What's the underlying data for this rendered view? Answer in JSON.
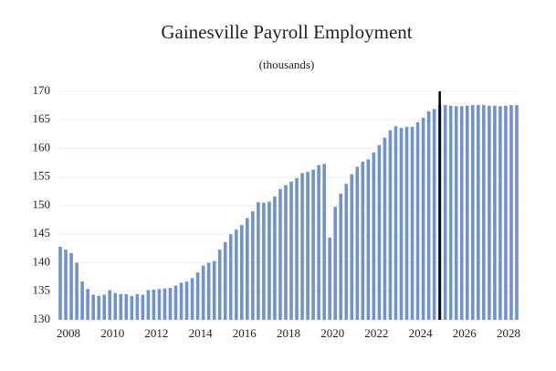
{
  "chart_data": {
    "type": "bar",
    "title": "Gainesville Payroll Employment",
    "subtitle": "(thousands)",
    "categories": [
      null,
      null,
      "2008",
      null,
      null,
      null,
      null,
      null,
      null,
      null,
      "2010",
      null,
      null,
      null,
      null,
      null,
      null,
      null,
      "2012",
      null,
      null,
      null,
      null,
      null,
      null,
      null,
      "2014",
      null,
      null,
      null,
      null,
      null,
      null,
      null,
      "2016",
      null,
      null,
      null,
      null,
      null,
      null,
      null,
      "2018",
      null,
      null,
      null,
      null,
      null,
      null,
      null,
      "2020",
      null,
      null,
      null,
      null,
      null,
      null,
      null,
      "2022",
      null,
      null,
      null,
      null,
      null,
      null,
      null,
      "2024",
      null,
      null,
      null,
      null,
      null,
      null,
      null,
      "2026",
      null,
      null,
      null,
      null,
      null,
      null,
      null,
      "2028",
      null
    ],
    "values": [
      142.8,
      142.3,
      141.7,
      140.0,
      136.7,
      135.4,
      134.4,
      134.2,
      134.4,
      135.2,
      134.7,
      134.5,
      134.5,
      134.2,
      134.5,
      134.4,
      135.2,
      135.3,
      135.4,
      135.5,
      135.6,
      136.0,
      136.5,
      136.7,
      137.3,
      138.3,
      139.5,
      140.0,
      140.3,
      142.3,
      143.6,
      145.0,
      145.8,
      146.6,
      147.8,
      149.0,
      150.6,
      150.5,
      150.7,
      151.6,
      152.9,
      153.6,
      154.2,
      154.8,
      155.7,
      155.9,
      156.3,
      157.1,
      157.3,
      144.4,
      149.8,
      152.1,
      153.8,
      155.5,
      156.8,
      157.7,
      158.1,
      159.3,
      160.6,
      161.9,
      163.2,
      163.9,
      163.6,
      163.8,
      163.8,
      164.6,
      165.4,
      166.5,
      166.9,
      167.6,
      167.6,
      167.5,
      167.4,
      167.4,
      167.5,
      167.6,
      167.6,
      167.6,
      167.5,
      167.5,
      167.4,
      167.5,
      167.6,
      167.6
    ],
    "color": "#7193cc",
    "ylim": [
      130,
      170
    ],
    "yticks": [
      130,
      135,
      140,
      145,
      150,
      155,
      160,
      165,
      170
    ],
    "grid": true,
    "vline": 69.5,
    "vline_color": "#000000"
  }
}
